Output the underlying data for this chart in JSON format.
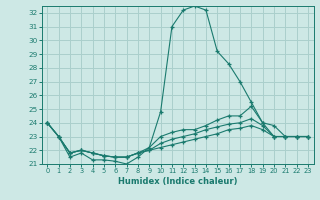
{
  "xlabel": "Humidex (Indice chaleur)",
  "background_color": "#cde8e5",
  "grid_color": "#aacfcc",
  "line_color": "#1a7a6e",
  "x_values": [
    0,
    1,
    2,
    3,
    4,
    5,
    6,
    7,
    8,
    9,
    10,
    11,
    12,
    13,
    14,
    15,
    16,
    17,
    18,
    19,
    20,
    21,
    22,
    23
  ],
  "series": [
    [
      24.0,
      23.0,
      21.5,
      21.8,
      21.3,
      21.3,
      21.2,
      21.0,
      21.5,
      22.2,
      24.8,
      31.0,
      32.2,
      32.5,
      32.2,
      29.2,
      28.3,
      27.0,
      25.5,
      24.0,
      23.8,
      23.0,
      23.0,
      23.0
    ],
    [
      24.0,
      23.0,
      21.8,
      22.0,
      21.8,
      21.6,
      21.5,
      21.5,
      21.8,
      22.2,
      23.0,
      23.3,
      23.5,
      23.5,
      23.8,
      24.2,
      24.5,
      24.5,
      25.2,
      24.0,
      23.0,
      23.0,
      23.0,
      23.0
    ],
    [
      24.0,
      23.0,
      21.8,
      22.0,
      21.8,
      21.6,
      21.5,
      21.5,
      21.8,
      22.0,
      22.5,
      22.8,
      23.0,
      23.2,
      23.5,
      23.7,
      23.9,
      24.0,
      24.3,
      23.8,
      23.0,
      23.0,
      23.0,
      23.0
    ],
    [
      24.0,
      23.0,
      21.8,
      22.0,
      21.8,
      21.6,
      21.5,
      21.5,
      21.8,
      22.0,
      22.2,
      22.4,
      22.6,
      22.8,
      23.0,
      23.2,
      23.5,
      23.6,
      23.8,
      23.5,
      23.0,
      23.0,
      23.0,
      23.0
    ]
  ],
  "ylim": [
    21.0,
    32.5
  ],
  "xlim": [
    -0.5,
    23.5
  ],
  "yticks": [
    21,
    22,
    23,
    24,
    25,
    26,
    27,
    28,
    29,
    30,
    31,
    32
  ],
  "xticks": [
    0,
    1,
    2,
    3,
    4,
    5,
    6,
    7,
    8,
    9,
    10,
    11,
    12,
    13,
    14,
    15,
    16,
    17,
    18,
    19,
    20,
    21,
    22,
    23
  ]
}
